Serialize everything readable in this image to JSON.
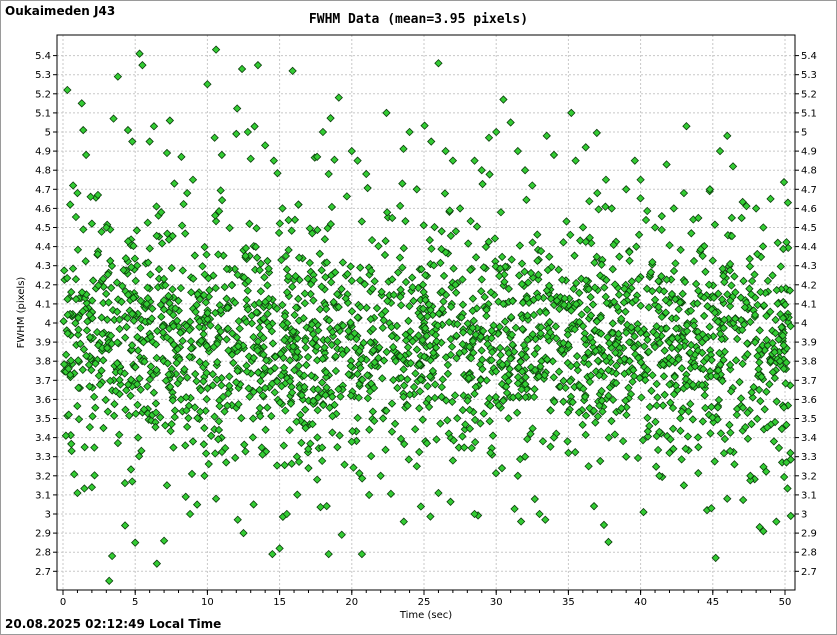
{
  "header": {
    "station": "Oukaimeden J43",
    "timestamp": "20.08.2025 02:12:49 Local Time"
  },
  "colors": {
    "marker_fill": "#33cc33",
    "marker_stroke": "#0b3d0b",
    "grid": "#c8c8c8"
  },
  "chart_data": {
    "type": "scatter",
    "title": "FWHM Data (mean=3.95 pixels)",
    "xlabel": "Time (sec)",
    "ylabel": "FWHM (pixels)",
    "xlim": [
      0,
      50
    ],
    "ylim": [
      2.65,
      5.45
    ],
    "x_ticks": [
      "0",
      "5",
      "10",
      "15",
      "20",
      "25",
      "30",
      "35",
      "40",
      "45",
      "50"
    ],
    "y_ticks": [
      "2.7",
      "2.8",
      "2.9",
      "3",
      "3.1",
      "3.2",
      "3.3",
      "3.4",
      "3.5",
      "3.6",
      "3.7",
      "3.8",
      "3.9",
      "4",
      "4.1",
      "4.2",
      "4.3",
      "4.4",
      "4.5",
      "4.6",
      "4.7",
      "4.8",
      "4.9",
      "5",
      "5.1",
      "5.2",
      "5.3",
      "5.4"
    ],
    "grid": true,
    "marker": "diamond",
    "series": [
      {
        "values": [
          [
            0.3,
            5.22
          ],
          [
            0.7,
            4.72
          ],
          [
            1.3,
            5.15
          ],
          [
            1.4,
            5.01
          ],
          [
            1.6,
            4.88
          ],
          [
            2.0,
            4.52
          ],
          [
            2.4,
            4.36
          ],
          [
            3.5,
            5.07
          ],
          [
            3.8,
            5.29
          ],
          [
            4.5,
            5.01
          ],
          [
            4.8,
            4.95
          ],
          [
            5.3,
            5.41
          ],
          [
            5.5,
            5.35
          ],
          [
            6.0,
            4.95
          ],
          [
            6.3,
            5.03
          ],
          [
            7.2,
            4.89
          ],
          [
            7.4,
            5.06
          ],
          [
            8.2,
            4.87
          ],
          [
            8.6,
            4.68
          ],
          [
            9.0,
            4.75
          ],
          [
            10.0,
            5.25
          ],
          [
            10.5,
            4.97
          ],
          [
            11.0,
            4.88
          ],
          [
            12.0,
            4.99
          ],
          [
            12.4,
            5.33
          ],
          [
            12.8,
            5.0
          ],
          [
            13.0,
            4.86
          ],
          [
            13.1,
            5.46
          ],
          [
            13.5,
            5.35
          ],
          [
            14.0,
            4.93
          ],
          [
            14.6,
            4.85
          ],
          [
            15.2,
            4.6
          ],
          [
            15.9,
            5.32
          ],
          [
            16.3,
            4.62
          ],
          [
            17.6,
            4.87
          ],
          [
            18.0,
            5.0
          ],
          [
            18.4,
            4.78
          ],
          [
            19.1,
            5.18
          ],
          [
            20.0,
            4.9
          ],
          [
            20.4,
            4.85
          ],
          [
            21.0,
            4.78
          ],
          [
            22.4,
            5.1
          ],
          [
            22.8,
            4.55
          ],
          [
            23.5,
            4.73
          ],
          [
            24.0,
            5.0
          ],
          [
            24.5,
            4.7
          ],
          [
            25.5,
            4.95
          ],
          [
            26.0,
            5.36
          ],
          [
            26.5,
            4.9
          ],
          [
            27.0,
            4.85
          ],
          [
            27.5,
            4.6
          ],
          [
            28.5,
            4.85
          ],
          [
            29.0,
            4.8
          ],
          [
            29.5,
            4.97
          ],
          [
            30.0,
            5.0
          ],
          [
            30.5,
            5.17
          ],
          [
            31.0,
            5.05
          ],
          [
            31.5,
            4.9
          ],
          [
            32.0,
            4.8
          ],
          [
            32.5,
            4.72
          ],
          [
            33.5,
            4.98
          ],
          [
            34.0,
            4.88
          ],
          [
            35.2,
            5.1
          ],
          [
            35.5,
            4.85
          ],
          [
            36.2,
            4.92
          ],
          [
            37.0,
            4.68
          ],
          [
            37.6,
            4.75
          ],
          [
            38.0,
            4.6
          ],
          [
            39.0,
            4.7
          ],
          [
            39.6,
            4.85
          ],
          [
            40.0,
            4.75
          ],
          [
            41.0,
            4.5
          ],
          [
            41.8,
            4.83
          ],
          [
            42.3,
            4.6
          ],
          [
            43.0,
            4.68
          ],
          [
            44.0,
            4.55
          ],
          [
            44.8,
            4.7
          ],
          [
            45.5,
            4.9
          ],
          [
            46.0,
            4.98
          ],
          [
            46.4,
            4.82
          ],
          [
            47.0,
            4.55
          ],
          [
            48.0,
            4.6
          ],
          [
            48.5,
            4.5
          ],
          [
            49.0,
            4.65
          ],
          [
            49.5,
            4.42
          ],
          [
            50.2,
            4.63
          ],
          [
            0.5,
            4.62
          ],
          [
            1.0,
            4.68
          ],
          [
            3.0,
            4.5
          ],
          [
            6.8,
            4.58
          ],
          [
            0.2,
            3.41
          ],
          [
            0.6,
            3.33
          ],
          [
            1.0,
            3.11
          ],
          [
            2.0,
            3.14
          ],
          [
            3.4,
            2.78
          ],
          [
            3.2,
            2.65
          ],
          [
            4.3,
            2.94
          ],
          [
            5.0,
            2.85
          ],
          [
            6.5,
            2.74
          ],
          [
            7.0,
            2.86
          ],
          [
            7.2,
            3.15
          ],
          [
            8.5,
            3.09
          ],
          [
            8.8,
            3.0
          ],
          [
            9.8,
            3.2
          ],
          [
            10.6,
            3.08
          ],
          [
            11.3,
            3.27
          ],
          [
            12.1,
            2.97
          ],
          [
            12.5,
            2.9
          ],
          [
            13.2,
            3.05
          ],
          [
            14.5,
            2.79
          ],
          [
            15.0,
            2.82
          ],
          [
            15.5,
            3.0
          ],
          [
            16.2,
            3.3
          ],
          [
            17.0,
            3.24
          ],
          [
            17.6,
            3.18
          ],
          [
            18.4,
            2.79
          ],
          [
            19.0,
            3.35
          ],
          [
            20.7,
            2.79
          ],
          [
            21.2,
            3.1
          ],
          [
            22.0,
            3.2
          ],
          [
            23.6,
            2.96
          ],
          [
            24.5,
            3.25
          ],
          [
            25.2,
            3.37
          ],
          [
            26.0,
            3.11
          ],
          [
            27.0,
            3.28
          ],
          [
            28.5,
            3.0
          ],
          [
            29.6,
            3.32
          ],
          [
            30.4,
            3.24
          ],
          [
            31.5,
            3.2
          ],
          [
            32.0,
            3.3
          ],
          [
            33.0,
            3.0
          ],
          [
            33.4,
            2.97
          ],
          [
            34.0,
            3.4
          ],
          [
            35.0,
            3.32
          ],
          [
            36.4,
            3.25
          ],
          [
            37.8,
            3.4
          ],
          [
            39.0,
            3.3
          ],
          [
            40.2,
            3.01
          ],
          [
            41.3,
            3.2
          ],
          [
            42.0,
            3.32
          ],
          [
            43.0,
            3.15
          ],
          [
            44.0,
            3.35
          ],
          [
            44.6,
            3.02
          ],
          [
            45.2,
            2.77
          ],
          [
            46.0,
            3.08
          ],
          [
            46.5,
            3.26
          ],
          [
            47.6,
            3.2
          ],
          [
            48.5,
            2.91
          ],
          [
            49.4,
            2.96
          ],
          [
            49.8,
            3.27
          ],
          [
            50.4,
            2.99
          ],
          [
            50.1,
            3.27
          ],
          [
            44.9,
            3.03
          ],
          [
            0.4,
            3.52
          ],
          [
            1.5,
            3.35
          ],
          [
            2.8,
            3.45
          ],
          [
            5.2,
            3.4
          ],
          [
            9.0,
            3.38
          ],
          [
            10.8,
            3.44
          ],
          [
            16.8,
            3.45
          ]
        ]
      }
    ],
    "density": {
      "x_range": [
        0.0,
        50.4
      ],
      "count": 2300,
      "core_center": 3.9,
      "core_spread": 0.26,
      "wide_spread": 0.42
    }
  }
}
